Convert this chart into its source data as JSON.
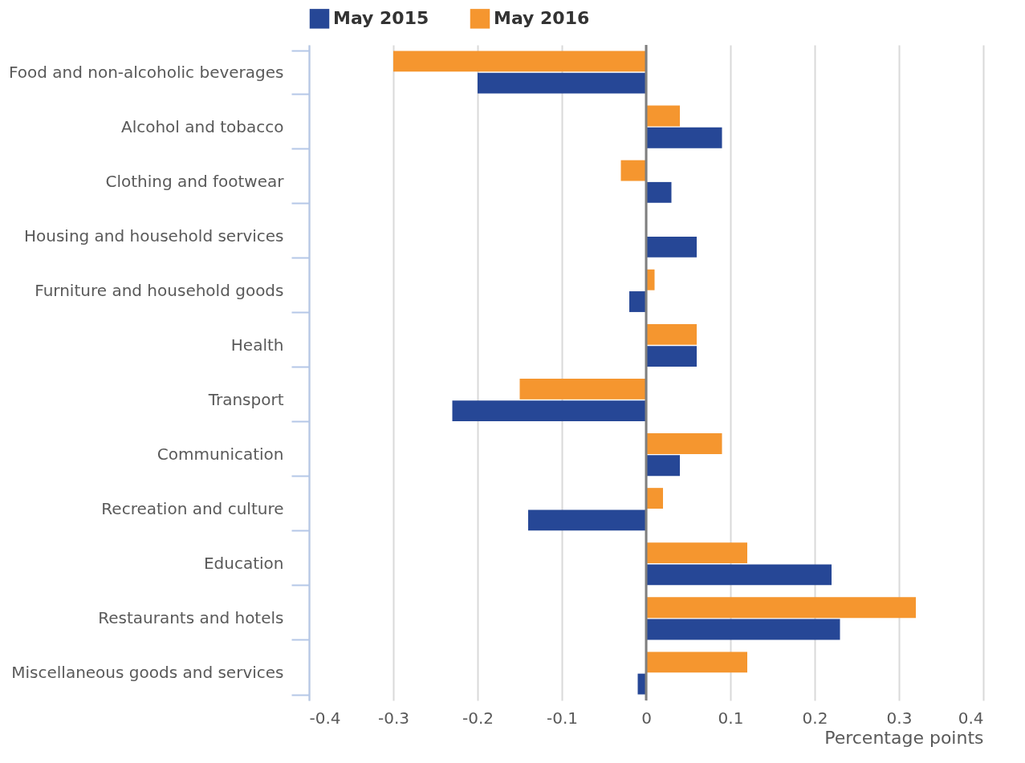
{
  "chart_data": {
    "type": "bar",
    "orientation": "horizontal",
    "xlabel": "Percentage points",
    "categories": [
      "Food and non-alcoholic beverages",
      "Alcohol and tobacco",
      "Clothing and footwear",
      "Housing and household services",
      "Furniture and household goods",
      "Health",
      "Transport",
      "Communication",
      "Recreation and culture",
      "Education",
      "Restaurants and hotels",
      "Miscellaneous goods and services"
    ],
    "series": [
      {
        "name": "May 2015",
        "color": "#264796",
        "values": [
          -0.2,
          0.09,
          0.03,
          0.06,
          -0.02,
          0.06,
          -0.23,
          0.04,
          -0.14,
          0.22,
          0.23,
          -0.01
        ]
      },
      {
        "name": "May 2016",
        "color": "#f5962f",
        "values": [
          -0.3,
          0.04,
          -0.03,
          0,
          0.01,
          0.06,
          -0.15,
          0.09,
          0.02,
          0.12,
          0.32,
          0.12
        ]
      }
    ],
    "xlim": [
      -0.4,
      0.4
    ],
    "xticks": [
      -0.4,
      -0.3,
      -0.2,
      -0.1,
      0,
      0.1,
      0.2,
      0.3,
      0.4
    ],
    "grid": "x",
    "legend": "top",
    "ref_lines": [
      {
        "axis": "x",
        "value": 0,
        "color": "#7f7f7f"
      }
    ]
  }
}
